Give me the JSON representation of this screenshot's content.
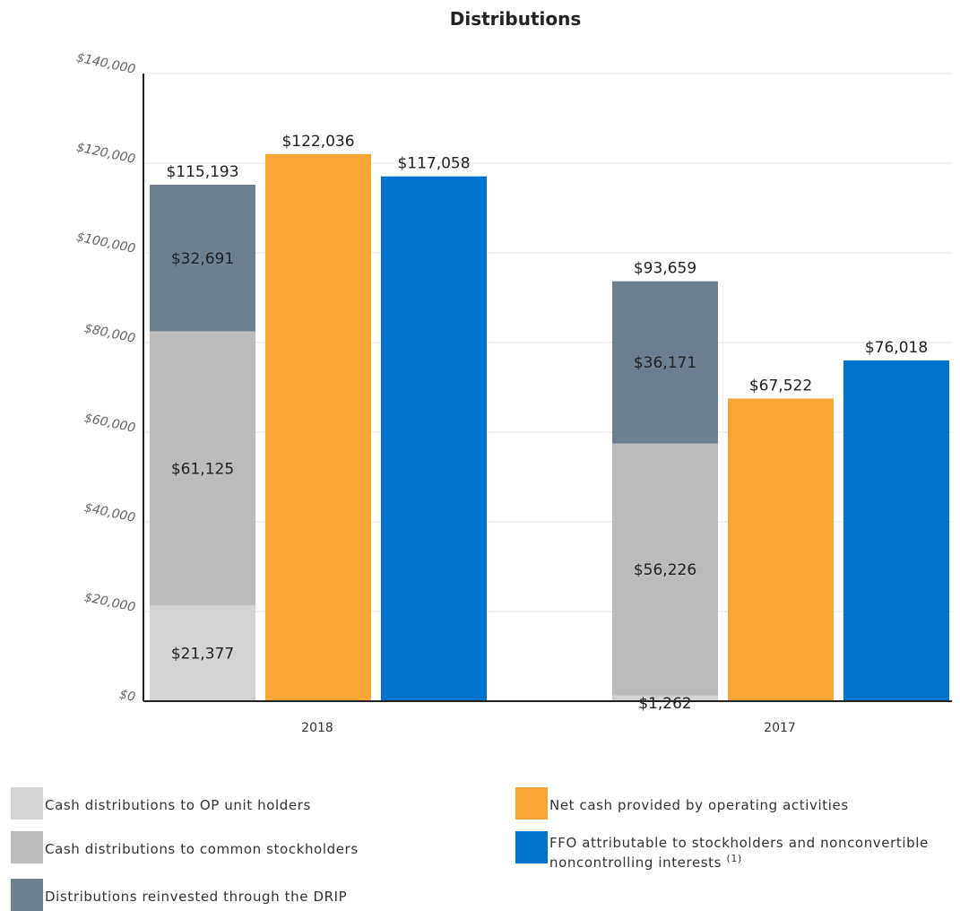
{
  "chart_data": {
    "type": "bar",
    "title": "Distributions",
    "categories": [
      "2018",
      "2017"
    ],
    "ylim": [
      0,
      140000
    ],
    "y_ticks": [
      "$0",
      "$20,000",
      "$40,000",
      "$60,000",
      "$80,000",
      "$100,000",
      "$120,000",
      "$140,000"
    ],
    "grid": true,
    "legend_position": "bottom",
    "stacked_bar": {
      "series": [
        {
          "name": "Cash distributions to OP unit holders",
          "color": "#d3d3d3",
          "values": [
            21377,
            1262
          ],
          "labels": [
            "$21,377",
            "$1,262"
          ]
        },
        {
          "name": "Cash distributions to common stockholders",
          "color": "#bbbbbb",
          "values": [
            61125,
            56226
          ],
          "labels": [
            "$61,125",
            "$56,226"
          ]
        },
        {
          "name": "Distributions reinvested through the DRIP",
          "color": "#6e7f90",
          "values": [
            32691,
            36171
          ],
          "labels": [
            "$32,691",
            "$36,171"
          ]
        }
      ],
      "totals": [
        115193,
        93659
      ],
      "total_labels": [
        "$115,193",
        "$93,659"
      ]
    },
    "bars": [
      {
        "name": "Net cash provided by operating activities",
        "color": "#f7a535",
        "values": [
          122036,
          67522
        ],
        "labels": [
          "$122,036",
          "$67,522"
        ]
      },
      {
        "name": "FFO attributable to stockholders and nonconvertible noncontrolling interests",
        "footnote": "(1)",
        "color": "#0073cf",
        "values": [
          117058,
          76018
        ],
        "labels": [
          "$117,058",
          "$76,018"
        ]
      }
    ]
  }
}
